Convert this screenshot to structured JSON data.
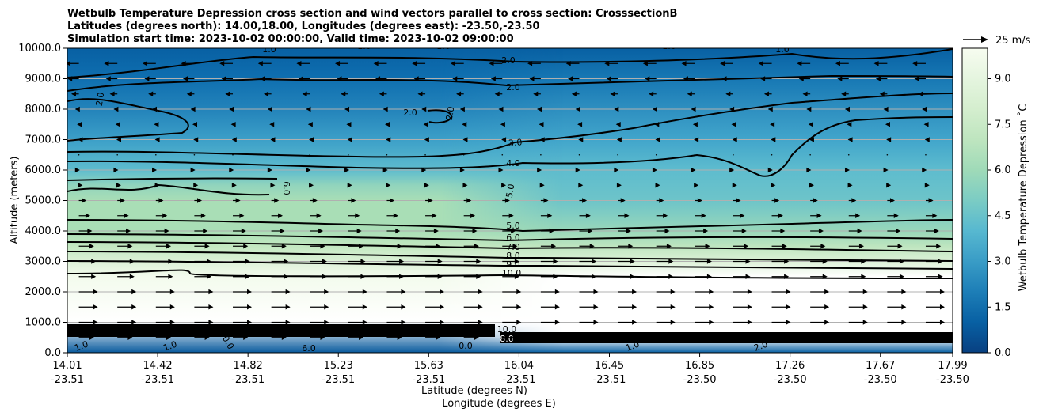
{
  "chart_data": {
    "type": "heatmap",
    "title_lines": [
      "Wetbulb Temperature Depression cross section and wind vectors parallel to cross section: CrosssectionB",
      "Latitudes (degrees north): 14.00,18.00, Longitudes (degrees east): -23.50,-23.50",
      "Simulation start time: 2023-10-02 00:00:00, Valid time: 2023-10-02 09:00:00"
    ],
    "xlabel_1": "Latitude (degrees N)",
    "xlabel_2": "Longitude (degrees E)",
    "ylabel": "Altitude (meters)",
    "colorbar_label": "Wetbulb Temperature Depression ˚C",
    "ylim": [
      0,
      10000
    ],
    "y_ticks": [
      "0.0",
      "1000.0",
      "2000.0",
      "3000.0",
      "4000.0",
      "5000.0",
      "6000.0",
      "7000.0",
      "8000.0",
      "9000.0",
      "10000.0"
    ],
    "x_lat_ticks": [
      "14.01",
      "14.42",
      "14.82",
      "15.23",
      "15.63",
      "16.04",
      "16.45",
      "16.85",
      "17.26",
      "17.67",
      "17.99"
    ],
    "x_lon_ticks": [
      "-23.51",
      "-23.51",
      "-23.51",
      "-23.51",
      "-23.51",
      "-23.51",
      "-23.51",
      "-23.50",
      "-23.50",
      "-23.50",
      "-23.50"
    ],
    "colorbar_range": [
      0,
      10
    ],
    "colorbar_ticks": [
      "0.0",
      "1.5",
      "3.0",
      "4.5",
      "6.0",
      "7.5",
      "9.0"
    ],
    "colormap": "GnBu_r",
    "grid": "horizontal",
    "quiver_key": "25 m/s",
    "contour_labels": [
      "1.0",
      "1.0",
      "1.0",
      "1.0",
      "1.0",
      "2.0",
      "2.0",
      "2.0",
      "2.0",
      "2.0",
      "3.0",
      "4.0",
      "5.0",
      "5.0",
      "6.0",
      "6.0",
      "7.0",
      "8.0",
      "9.0",
      "10.0",
      "10.0",
      "0.0",
      "1.0",
      "1.0",
      "1.0",
      "2.0",
      "0.0",
      "6.0",
      "8.0"
    ],
    "depression_profile_left": [
      {
        "altitude": 0,
        "value": 0.8
      },
      {
        "altitude": 1000,
        "value": 10
      },
      {
        "altitude": 2500,
        "value": 9.8
      },
      {
        "altitude": 3000,
        "value": 8.5
      },
      {
        "altitude": 3500,
        "value": 7.2
      },
      {
        "altitude": 4000,
        "value": 6.3
      },
      {
        "altitude": 5000,
        "value": 6.3
      },
      {
        "altitude": 5500,
        "value": 5.6
      },
      {
        "altitude": 6000,
        "value": 4.2
      },
      {
        "altitude": 7000,
        "value": 3.1
      },
      {
        "altitude": 8000,
        "value": 2.2
      },
      {
        "altitude": 9000,
        "value": 1.5
      },
      {
        "altitude": 10000,
        "value": 1.0
      }
    ],
    "depression_profile_right": [
      {
        "altitude": 0,
        "value": 1.0
      },
      {
        "altitude": 500,
        "value": 10
      },
      {
        "altitude": 2500,
        "value": 10
      },
      {
        "altitude": 3000,
        "value": 8.5
      },
      {
        "altitude": 3500,
        "value": 7.0
      },
      {
        "altitude": 4000,
        "value": 5.8
      },
      {
        "altitude": 5000,
        "value": 4.6
      },
      {
        "altitude": 6000,
        "value": 4.2
      },
      {
        "altitude": 7000,
        "value": 3.3
      },
      {
        "altitude": 8000,
        "value": 2.6
      },
      {
        "altitude": 9000,
        "value": 1.8
      },
      {
        "altitude": 10000,
        "value": 1.0
      }
    ],
    "wind_profile": [
      {
        "altitude": 500,
        "speed": 8
      },
      {
        "altitude": 1000,
        "speed": 10
      },
      {
        "altitude": 1500,
        "speed": 10
      },
      {
        "altitude": 2000,
        "speed": 10
      },
      {
        "altitude": 2500,
        "speed": 9
      },
      {
        "altitude": 3000,
        "speed": 9
      },
      {
        "altitude": 3500,
        "speed": 8
      },
      {
        "altitude": 4000,
        "speed": 7
      },
      {
        "altitude": 4500,
        "speed": 6
      },
      {
        "altitude": 5000,
        "speed": 4
      },
      {
        "altitude": 5500,
        "speed": 2
      },
      {
        "altitude": 6000,
        "speed": 0.5
      },
      {
        "altitude": 6500,
        "speed": 0
      },
      {
        "altitude": 7000,
        "speed": -0.5
      },
      {
        "altitude": 7500,
        "speed": -1
      },
      {
        "altitude": 8000,
        "speed": -2
      },
      {
        "altitude": 8500,
        "speed": -4
      },
      {
        "altitude": 9000,
        "speed": -6
      },
      {
        "altitude": 9500,
        "speed": -7
      }
    ]
  }
}
